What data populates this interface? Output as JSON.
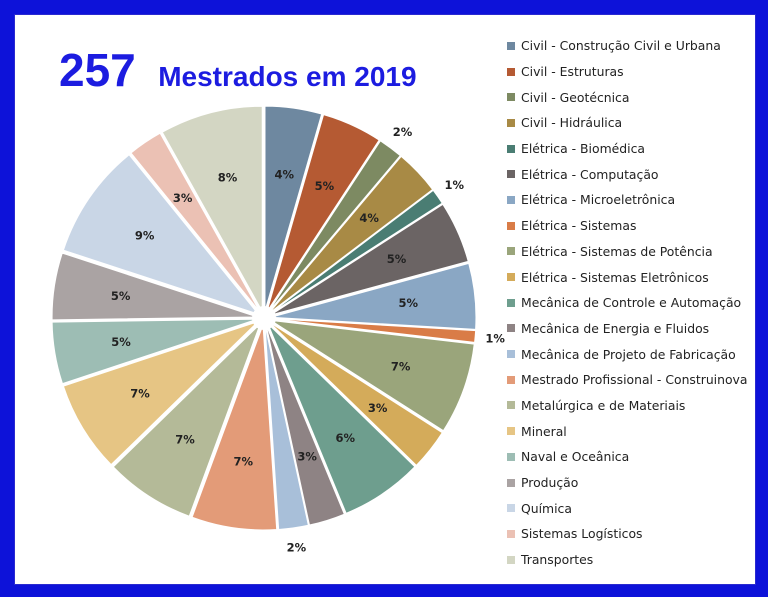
{
  "header": {
    "count": "257",
    "title": "Mestrados em 2019"
  },
  "chart_data": {
    "type": "pie",
    "slices": [
      {
        "name": "Civil - Construção Civil e Urbana",
        "label": "4%",
        "value": 4.4,
        "color": "#6e88a0"
      },
      {
        "name": "Civil - Estruturas",
        "label": "5%",
        "value": 4.7,
        "color": "#b55a33"
      },
      {
        "name": "Civil - Geotécnica",
        "label": "2%",
        "value": 1.9,
        "color": "#7d8a62"
      },
      {
        "name": "Civil - Hidráulica",
        "label": "4%",
        "value": 3.5,
        "color": "#a88a45"
      },
      {
        "name": "Elétrica - Biomédica",
        "label": "1%",
        "value": 1.2,
        "color": "#4a7d73"
      },
      {
        "name": "Elétrica - Computação",
        "label": "5%",
        "value": 4.8,
        "color": "#6b6464"
      },
      {
        "name": "Elétrica - Microeletrônica",
        "label": "5%",
        "value": 5.1,
        "color": "#8aa7c4"
      },
      {
        "name": "Elétrica - Sistemas",
        "label": "1%",
        "value": 0.9,
        "color": "#d97c47"
      },
      {
        "name": "Elétrica - Sistemas de Potência",
        "label": "7%",
        "value": 7.1,
        "color": "#9aa57b"
      },
      {
        "name": "Elétrica - Sistemas Eletrônicos",
        "label": "3%",
        "value": 3.2,
        "color": "#d4ab5a"
      },
      {
        "name": "Mecânica de Controle e Automação",
        "label": "6%",
        "value": 6.4,
        "color": "#6e9e8e"
      },
      {
        "name": "Mecânica de Energia e Fluidos",
        "label": "3%",
        "value": 2.8,
        "color": "#8e8384"
      },
      {
        "name": "Mecânica de Projeto de Fabricação",
        "label": "2%",
        "value": 2.3,
        "color": "#a8bfd9"
      },
      {
        "name": "Mestrado Profissional - Construinova",
        "label": "7%",
        "value": 6.6,
        "color": "#e39b78"
      },
      {
        "name": "Metalúrgica e de Materiais",
        "label": "7%",
        "value": 7.0,
        "color": "#b4ba98"
      },
      {
        "name": "Mineral",
        "label": "7%",
        "value": 7.1,
        "color": "#e6c584"
      },
      {
        "name": "Naval e Oceânica",
        "label": "5%",
        "value": 4.8,
        "color": "#9dbdb4"
      },
      {
        "name": "Produção",
        "label": "5%",
        "value": 5.2,
        "color": "#aaa3a3"
      },
      {
        "name": "Química",
        "label": "9%",
        "value": 9.0,
        "color": "#c9d6e6"
      },
      {
        "name": "Sistemas Logísticos",
        "label": "3%",
        "value": 2.7,
        "color": "#ebc1b4"
      },
      {
        "name": "Transportes",
        "label": "8%",
        "value": 8.0,
        "color": "#d3d6c3"
      }
    ],
    "legend_position": "right"
  }
}
